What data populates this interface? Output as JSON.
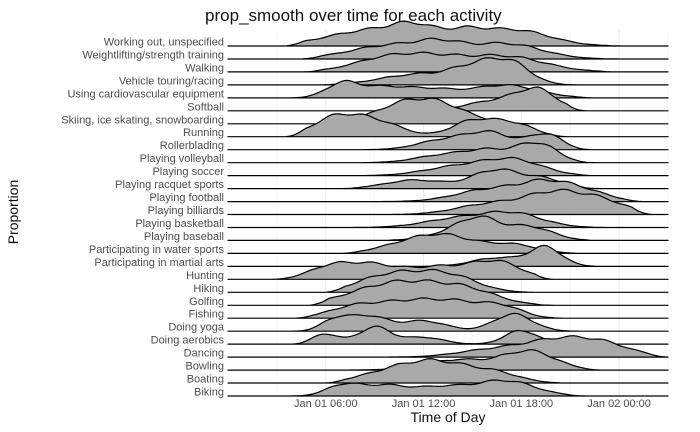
{
  "chart_data": {
    "type": "area",
    "subtype": "ridgeline",
    "title": "prop_smooth over time for each activity",
    "xlabel": "Time of Day",
    "ylabel": "Proportion",
    "x_ticks": [
      {
        "label": "Jan 01 06:00",
        "hour": 6
      },
      {
        "label": "Jan 01 12:00",
        "hour": 12
      },
      {
        "label": "Jan 01 18:00",
        "hour": 18
      },
      {
        "label": "Jan 02 00:00",
        "hour": 24
      }
    ],
    "x_range_hours": [
      0,
      27
    ],
    "fill_color": "#a9a9a9",
    "line_color": "#000000",
    "grid": true,
    "series": [
      {
        "name": "Working out, unspecified",
        "peaks": [
          [
            9.0,
            0.95,
            2.8
          ],
          [
            11.5,
            0.7,
            1.3
          ],
          [
            17.5,
            0.95,
            2.2
          ],
          [
            14.5,
            0.55,
            1.2
          ]
        ],
        "start": 3.5,
        "end": 24.5
      },
      {
        "name": "Weightlifting/strength training",
        "peaks": [
          [
            10.0,
            0.8,
            2.5
          ],
          [
            17.0,
            0.9,
            2.2
          ],
          [
            13.0,
            0.6,
            1.4
          ]
        ],
        "start": 4.5,
        "end": 24.0
      },
      {
        "name": "Walking",
        "peaks": [
          [
            9.5,
            0.7,
            2.0
          ],
          [
            12.5,
            0.7,
            2.0
          ],
          [
            17.0,
            0.9,
            2.4
          ]
        ],
        "start": 4.5,
        "end": 24.0
      },
      {
        "name": "Vehicle touring/racing",
        "peaks": [
          [
            11.5,
            0.6,
            2.2
          ],
          [
            15.5,
            1.1,
            1.6
          ],
          [
            17.5,
            0.9,
            1.2
          ]
        ],
        "start": 5.5,
        "end": 22.5
      },
      {
        "name": "Using cardiovascular equipment",
        "peaks": [
          [
            7.0,
            0.8,
            1.0
          ],
          [
            9.5,
            0.6,
            1.5
          ],
          [
            12.5,
            0.45,
            1.5
          ],
          [
            17.0,
            0.75,
            2.0
          ]
        ],
        "start": 3.0,
        "end": 22.5
      },
      {
        "name": "Softball",
        "peaks": [
          [
            16.5,
            0.6,
            1.8
          ],
          [
            19.0,
            1.1,
            1.2
          ]
        ],
        "start": 8.0,
        "end": 22.0
      },
      {
        "name": "Skiing, ice skating, snowboarding",
        "peaks": [
          [
            10.5,
            0.9,
            1.8
          ],
          [
            13.0,
            1.0,
            1.8
          ]
        ],
        "start": 5.5,
        "end": 19.0
      },
      {
        "name": "Running",
        "peaks": [
          [
            6.5,
            1.0,
            1.4
          ],
          [
            9.0,
            0.9,
            1.6
          ],
          [
            15.0,
            0.9,
            1.3
          ],
          [
            17.5,
            0.75,
            1.3
          ]
        ],
        "start": 3.5,
        "end": 21.0
      },
      {
        "name": "Rollerblading",
        "peaks": [
          [
            13.0,
            0.5,
            1.5
          ],
          [
            16.0,
            1.0,
            1.5
          ],
          [
            19.5,
            0.9,
            1.0
          ]
        ],
        "start": 7.0,
        "end": 22.5
      },
      {
        "name": "Playing volleyball",
        "peaks": [
          [
            13.0,
            0.4,
            1.6
          ],
          [
            16.0,
            0.7,
            1.5
          ],
          [
            19.0,
            1.1,
            1.2
          ]
        ],
        "start": 8.0,
        "end": 22.5
      },
      {
        "name": "Playing soccer",
        "peaks": [
          [
            14.0,
            0.5,
            2.0
          ],
          [
            17.5,
            0.9,
            1.8
          ]
        ],
        "start": 8.0,
        "end": 22.5
      },
      {
        "name": "Playing racquet sports",
        "peaks": [
          [
            11.5,
            0.5,
            1.8
          ],
          [
            16.5,
            1.1,
            1.5
          ],
          [
            19.5,
            0.5,
            1.2
          ]
        ],
        "start": 7.0,
        "end": 23.0
      },
      {
        "name": "Playing football",
        "peaks": [
          [
            16.0,
            0.7,
            2.0
          ],
          [
            19.5,
            1.0,
            1.6
          ],
          [
            22.0,
            0.5,
            1.5
          ]
        ],
        "start": 9.5,
        "end": 25.5
      },
      {
        "name": "Playing billiards",
        "peaks": [
          [
            16.0,
            0.6,
            2.0
          ],
          [
            20.0,
            1.2,
            1.8
          ],
          [
            23.0,
            0.7,
            1.6
          ]
        ],
        "start": 9.5,
        "end": 26.0
      },
      {
        "name": "Playing basketball",
        "peaks": [
          [
            14.0,
            0.5,
            2.0
          ],
          [
            17.5,
            0.8,
            1.8
          ]
        ],
        "start": 7.0,
        "end": 23.5
      },
      {
        "name": "Playing baseball",
        "peaks": [
          [
            14.0,
            0.5,
            1.6
          ],
          [
            15.5,
            1.0,
            1.2
          ],
          [
            18.5,
            0.8,
            1.4
          ]
        ],
        "start": 9.0,
        "end": 23.0
      },
      {
        "name": "Participating in water sports",
        "peaks": [
          [
            11.0,
            0.5,
            1.8
          ],
          [
            13.5,
            0.9,
            1.8
          ],
          [
            17.5,
            0.5,
            1.5
          ]
        ],
        "start": 7.0,
        "end": 22.0
      },
      {
        "name": "Participating in martial arts",
        "peaks": [
          [
            16.5,
            0.5,
            1.5
          ],
          [
            19.5,
            1.1,
            1.0
          ]
        ],
        "start": 10.0,
        "end": 23.5
      },
      {
        "name": "Hunting",
        "peaks": [
          [
            6.0,
            0.5,
            1.2
          ],
          [
            8.5,
            0.9,
            1.8
          ],
          [
            13.0,
            0.7,
            1.8
          ],
          [
            16.5,
            1.0,
            1.5
          ]
        ],
        "start": 2.5,
        "end": 20.0
      },
      {
        "name": "Hiking",
        "peaks": [
          [
            9.0,
            0.6,
            1.6
          ],
          [
            11.5,
            0.9,
            1.8
          ],
          [
            14.0,
            0.7,
            1.6
          ]
        ],
        "start": 6.0,
        "end": 19.0
      },
      {
        "name": "Golfing",
        "peaks": [
          [
            9.0,
            0.8,
            2.2
          ],
          [
            12.0,
            0.95,
            2.2
          ],
          [
            15.0,
            0.65,
            1.8
          ]
        ],
        "start": 5.0,
        "end": 20.0
      },
      {
        "name": "Fishing",
        "peaks": [
          [
            7.5,
            0.5,
            1.5
          ],
          [
            11.0,
            0.95,
            2.2
          ],
          [
            14.5,
            0.7,
            1.8
          ],
          [
            17.0,
            0.5,
            1.2
          ]
        ],
        "start": 4.0,
        "end": 21.0
      },
      {
        "name": "Doing yoga",
        "peaks": [
          [
            6.5,
            0.6,
            0.8
          ],
          [
            8.5,
            0.9,
            1.2
          ],
          [
            12.0,
            0.6,
            1.4
          ],
          [
            17.5,
            1.0,
            1.2
          ]
        ],
        "start": 3.5,
        "end": 22.0
      },
      {
        "name": "Doing aerobics",
        "peaks": [
          [
            6.0,
            0.6,
            0.8
          ],
          [
            9.0,
            1.0,
            1.0
          ],
          [
            12.0,
            0.4,
            1.2
          ],
          [
            18.0,
            0.8,
            1.0
          ]
        ],
        "start": 3.5,
        "end": 21.5
      },
      {
        "name": "Dancing",
        "peaks": [
          [
            16.0,
            0.4,
            2.0
          ],
          [
            20.0,
            0.9,
            2.0
          ],
          [
            23.0,
            0.7,
            1.8
          ]
        ],
        "start": 0.0,
        "end": 27.0
      },
      {
        "name": "Bowling",
        "peaks": [
          [
            14.0,
            0.6,
            2.0
          ],
          [
            18.5,
            1.1,
            1.6
          ]
        ],
        "start": 7.0,
        "end": 23.0
      },
      {
        "name": "Boating",
        "peaks": [
          [
            10.0,
            0.6,
            2.0
          ],
          [
            13.0,
            1.1,
            2.0
          ],
          [
            16.5,
            0.5,
            1.5
          ]
        ],
        "start": 6.0,
        "end": 21.0
      },
      {
        "name": "Biking",
        "peaks": [
          [
            7.0,
            0.6,
            1.0
          ],
          [
            9.5,
            0.6,
            1.4
          ],
          [
            13.0,
            0.5,
            1.6
          ],
          [
            17.0,
            0.9,
            1.8
          ]
        ],
        "start": 3.5,
        "end": 22.0
      }
    ]
  }
}
